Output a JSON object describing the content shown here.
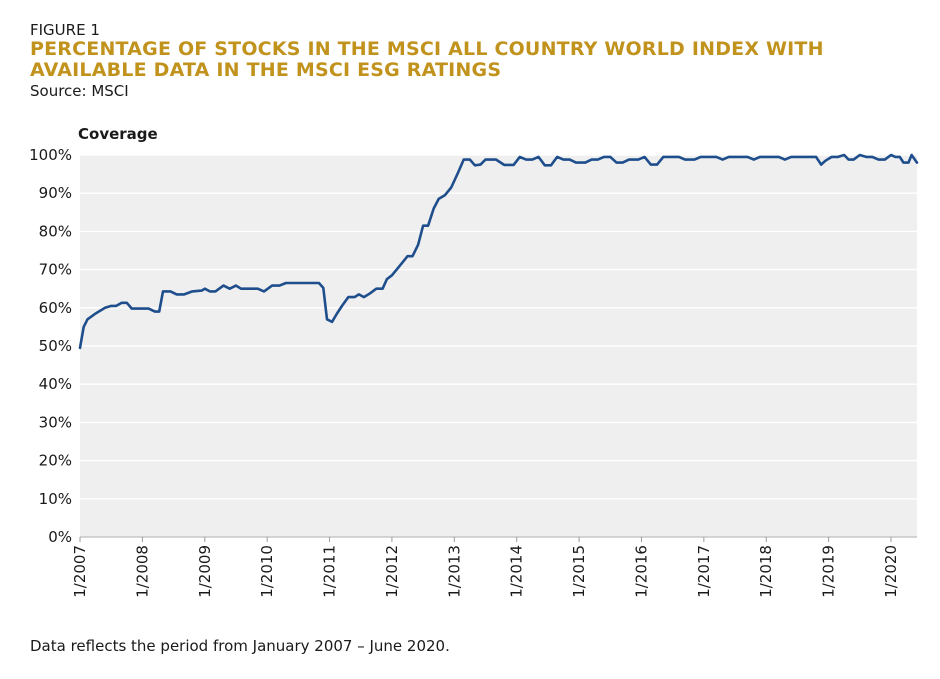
{
  "figure": {
    "label": "FIGURE 1",
    "title_line1": "PERCENTAGE OF STOCKS IN THE MSCI ALL COUNTRY WORLD INDEX WITH",
    "title_line2": "AVAILABLE DATA IN THE MSCI ESG RATINGS",
    "source": "Source: MSCI",
    "footnote": "Data reflects the period from January 2007 – June 2020."
  },
  "colors": {
    "line": "#1f4e8c",
    "plot_bg": "#efefef",
    "grid": "#ffffff",
    "title": "#c1931d"
  },
  "chart_data": {
    "type": "line",
    "title": "",
    "xlabel": "",
    "ylabel": "Coverage",
    "xlim": [
      2007.0,
      2020.4167
    ],
    "ylim": [
      0,
      100
    ],
    "yticks": [
      0,
      10,
      20,
      30,
      40,
      50,
      60,
      70,
      80,
      90,
      100
    ],
    "ytick_labels": [
      "0%",
      "10%",
      "20%",
      "30%",
      "40%",
      "50%",
      "60%",
      "70%",
      "80%",
      "90%",
      "100%"
    ],
    "xticks": [
      2007,
      2008,
      2009,
      2010,
      2011,
      2012,
      2013,
      2014,
      2015,
      2016,
      2017,
      2018,
      2019,
      2020
    ],
    "xtick_labels": [
      "1/2007",
      "1/2008",
      "1/2009",
      "1/2010",
      "1/2011",
      "1/2012",
      "1/2013",
      "1/2014",
      "1/2015",
      "1/2016",
      "1/2017",
      "1/2018",
      "1/2019",
      "1/2020"
    ],
    "grid": true,
    "series": [
      {
        "name": "Coverage",
        "points": [
          [
            2007.0,
            49.5
          ],
          [
            2007.06,
            55
          ],
          [
            2007.12,
            57
          ],
          [
            2007.25,
            58.5
          ],
          [
            2007.4,
            60
          ],
          [
            2007.5,
            60.5
          ],
          [
            2007.58,
            60.5
          ],
          [
            2007.67,
            61.3
          ],
          [
            2007.75,
            61.3
          ],
          [
            2007.83,
            59.8
          ],
          [
            2008.0,
            59.8
          ],
          [
            2008.1,
            59.8
          ],
          [
            2008.2,
            59
          ],
          [
            2008.27,
            59
          ],
          [
            2008.33,
            64.3
          ],
          [
            2008.45,
            64.3
          ],
          [
            2008.55,
            63.5
          ],
          [
            2008.67,
            63.5
          ],
          [
            2008.8,
            64.3
          ],
          [
            2008.95,
            64.5
          ],
          [
            2009.0,
            65
          ],
          [
            2009.08,
            64.3
          ],
          [
            2009.17,
            64.3
          ],
          [
            2009.3,
            65.8
          ],
          [
            2009.4,
            65
          ],
          [
            2009.5,
            65.8
          ],
          [
            2009.58,
            65
          ],
          [
            2009.7,
            65
          ],
          [
            2009.85,
            65
          ],
          [
            2009.95,
            64.3
          ],
          [
            2010.08,
            65.8
          ],
          [
            2010.2,
            65.8
          ],
          [
            2010.3,
            66.5
          ],
          [
            2010.5,
            66.5
          ],
          [
            2010.7,
            66.5
          ],
          [
            2010.83,
            66.5
          ],
          [
            2010.9,
            65.2
          ],
          [
            2010.96,
            57
          ],
          [
            2011.04,
            56.3
          ],
          [
            2011.12,
            58.5
          ],
          [
            2011.2,
            60.5
          ],
          [
            2011.3,
            62.8
          ],
          [
            2011.4,
            62.8
          ],
          [
            2011.47,
            63.5
          ],
          [
            2011.55,
            62.8
          ],
          [
            2011.65,
            63.8
          ],
          [
            2011.75,
            65
          ],
          [
            2011.85,
            65
          ],
          [
            2011.92,
            67.5
          ],
          [
            2012.0,
            68.5
          ],
          [
            2012.1,
            70.5
          ],
          [
            2012.2,
            72.5
          ],
          [
            2012.25,
            73.5
          ],
          [
            2012.33,
            73.5
          ],
          [
            2012.42,
            76.5
          ],
          [
            2012.5,
            81.5
          ],
          [
            2012.58,
            81.5
          ],
          [
            2012.67,
            86
          ],
          [
            2012.75,
            88.5
          ],
          [
            2012.85,
            89.5
          ],
          [
            2012.95,
            91.5
          ],
          [
            2013.05,
            95
          ],
          [
            2013.15,
            98.8
          ],
          [
            2013.25,
            98.8
          ],
          [
            2013.33,
            97.3
          ],
          [
            2013.42,
            97.5
          ],
          [
            2013.5,
            98.8
          ],
          [
            2013.67,
            98.8
          ],
          [
            2013.8,
            97.4
          ],
          [
            2013.95,
            97.4
          ],
          [
            2014.05,
            99.5
          ],
          [
            2014.15,
            98.8
          ],
          [
            2014.25,
            98.8
          ],
          [
            2014.35,
            99.5
          ],
          [
            2014.45,
            97.3
          ],
          [
            2014.55,
            97.3
          ],
          [
            2014.65,
            99.5
          ],
          [
            2014.75,
            98.8
          ],
          [
            2014.85,
            98.8
          ],
          [
            2014.95,
            98
          ],
          [
            2015.1,
            98
          ],
          [
            2015.2,
            98.8
          ],
          [
            2015.3,
            98.8
          ],
          [
            2015.4,
            99.5
          ],
          [
            2015.5,
            99.5
          ],
          [
            2015.6,
            98
          ],
          [
            2015.7,
            98
          ],
          [
            2015.8,
            98.8
          ],
          [
            2015.95,
            98.8
          ],
          [
            2016.05,
            99.5
          ],
          [
            2016.15,
            97.5
          ],
          [
            2016.25,
            97.5
          ],
          [
            2016.35,
            99.5
          ],
          [
            2016.5,
            99.5
          ],
          [
            2016.6,
            99.5
          ],
          [
            2016.7,
            98.8
          ],
          [
            2016.85,
            98.8
          ],
          [
            2016.95,
            99.5
          ],
          [
            2017.1,
            99.5
          ],
          [
            2017.2,
            99.5
          ],
          [
            2017.3,
            98.8
          ],
          [
            2017.4,
            99.5
          ],
          [
            2017.55,
            99.5
          ],
          [
            2017.7,
            99.5
          ],
          [
            2017.8,
            98.8
          ],
          [
            2017.9,
            99.5
          ],
          [
            2018.0,
            99.5
          ],
          [
            2018.1,
            99.5
          ],
          [
            2018.2,
            99.5
          ],
          [
            2018.3,
            98.8
          ],
          [
            2018.4,
            99.5
          ],
          [
            2018.5,
            99.5
          ],
          [
            2018.6,
            99.5
          ],
          [
            2018.7,
            99.5
          ],
          [
            2018.8,
            99.5
          ],
          [
            2018.88,
            97.5
          ],
          [
            2018.95,
            98.5
          ],
          [
            2019.05,
            99.5
          ],
          [
            2019.15,
            99.5
          ],
          [
            2019.25,
            100
          ],
          [
            2019.32,
            98.8
          ],
          [
            2019.4,
            98.8
          ],
          [
            2019.5,
            100
          ],
          [
            2019.6,
            99.5
          ],
          [
            2019.7,
            99.5
          ],
          [
            2019.8,
            98.8
          ],
          [
            2019.9,
            98.8
          ],
          [
            2020.0,
            100
          ],
          [
            2020.07,
            99.5
          ],
          [
            2020.14,
            99.5
          ],
          [
            2020.2,
            98
          ],
          [
            2020.28,
            98
          ],
          [
            2020.33,
            100
          ],
          [
            2020.4167,
            98
          ]
        ]
      }
    ]
  }
}
